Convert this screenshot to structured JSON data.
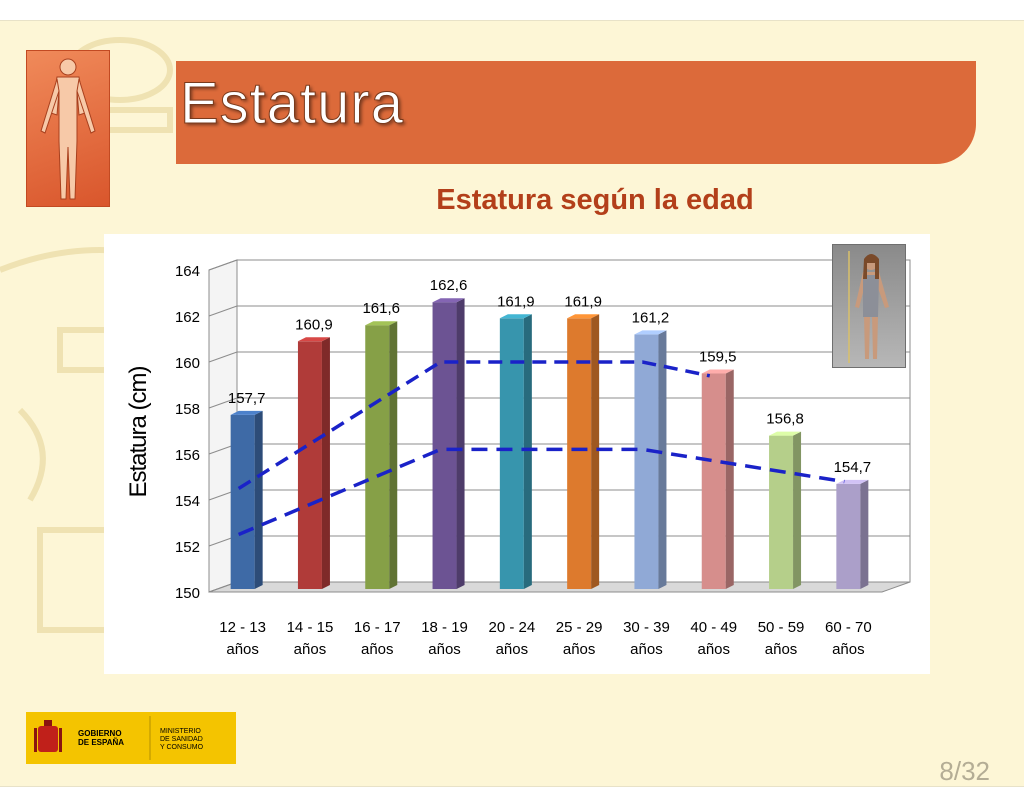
{
  "slide": {
    "title": "Estatura",
    "subtitle": "Estatura según la edad",
    "page_number": "8/32",
    "gov_left": [
      "GOBIERNO",
      "DE ESPAÑA"
    ],
    "gov_right": [
      "MINISTERIO",
      "DE SANIDAD",
      "Y CONSUMO"
    ]
  },
  "colors": {
    "banner": "#dc6a3a",
    "subtitle": "#b33f1a",
    "dashed_line": "#1a22c8",
    "background": "#fdf6d6"
  },
  "chart_data": {
    "type": "bar",
    "title": "",
    "xlabel": "",
    "ylabel": "Estatura (cm)",
    "ylim": [
      150,
      164
    ],
    "yticks": [
      150,
      152,
      154,
      156,
      158,
      160,
      162,
      164
    ],
    "grid": true,
    "categories": [
      [
        "12 - 13",
        "años"
      ],
      [
        "14 - 15",
        "años"
      ],
      [
        "16 - 17",
        "años"
      ],
      [
        "18 - 19",
        "años"
      ],
      [
        "20 - 24",
        "años"
      ],
      [
        "25 - 29",
        "años"
      ],
      [
        "30 - 39",
        "años"
      ],
      [
        "40 - 49",
        "años"
      ],
      [
        "50 - 59",
        "años"
      ],
      [
        "60 - 70",
        "años"
      ]
    ],
    "values": [
      157.7,
      160.9,
      161.6,
      162.6,
      161.9,
      161.9,
      161.2,
      159.5,
      156.8,
      154.7
    ],
    "value_labels": [
      "157,7",
      "160,9",
      "161,6",
      "162,6",
      "161,9",
      "161,9",
      "161,2",
      "159,5",
      "156,8",
      "154,7"
    ],
    "bar_colors": [
      "#3e6aa6",
      "#b03b39",
      "#86a047",
      "#6c5393",
      "#3795ad",
      "#dd7a2d",
      "#90a9d6",
      "#d68e8c",
      "#b5cf8a",
      "#ab9fc9"
    ],
    "overlay_lines": [
      {
        "style": "dashed",
        "points": [
          [
            0,
            154.5
          ],
          [
            3,
            160.0
          ],
          [
            6,
            160.0
          ],
          [
            7,
            159.4
          ]
        ]
      },
      {
        "style": "dashed",
        "points": [
          [
            0,
            152.5
          ],
          [
            3,
            156.2
          ],
          [
            6,
            156.2
          ],
          [
            9,
            154.8
          ]
        ]
      }
    ]
  }
}
